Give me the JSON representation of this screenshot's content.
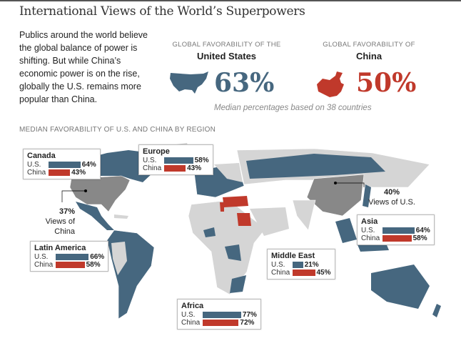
{
  "title": "International Views of the World’s Superpowers",
  "intro": "Publics around the world believe the global balance of power is shifting. But while China’s economic power is on the rise, globally the U.S. remains more popular than China.",
  "stats": [
    {
      "label": "GLOBAL FAVORABILITY OF THE",
      "country": "United States",
      "value": "63%",
      "icon": "us-map-icon",
      "color": "#46677f"
    },
    {
      "label": "GLOBAL FAVORABILITY OF",
      "country": "China",
      "value": "50%",
      "icon": "china-map-icon",
      "color": "#c0392b"
    }
  ],
  "note": "Median percentages based on 38 countries",
  "subtitle": "MEDIAN FAVORABILITY OF U.S. AND CHINA BY REGION",
  "row_labels": {
    "us": "U.S.",
    "china": "China"
  },
  "regions": [
    {
      "name": "Canada",
      "us": 64,
      "china": 43,
      "us_label": "64%",
      "china_label": "43%"
    },
    {
      "name": "Europe",
      "us": 58,
      "china": 43,
      "us_label": "58%",
      "china_label": "43%"
    },
    {
      "name": "Latin America",
      "us": 66,
      "china": 58,
      "us_label": "66%",
      "china_label": "58%"
    },
    {
      "name": "Africa",
      "us": 77,
      "china": 72,
      "us_label": "77%",
      "china_label": "72%"
    },
    {
      "name": "Middle East",
      "us": 21,
      "china": 45,
      "us_label": "21%",
      "china_label": "45%"
    },
    {
      "name": "Asia",
      "us": 64,
      "china": 58,
      "us_label": "64%",
      "china_label": "58%"
    }
  ],
  "annotations": {
    "us_views": {
      "value": "37%",
      "line1": "Views of",
      "line2": "China"
    },
    "china_views": {
      "value": "40%",
      "line1": "Views of U.S."
    }
  }
}
